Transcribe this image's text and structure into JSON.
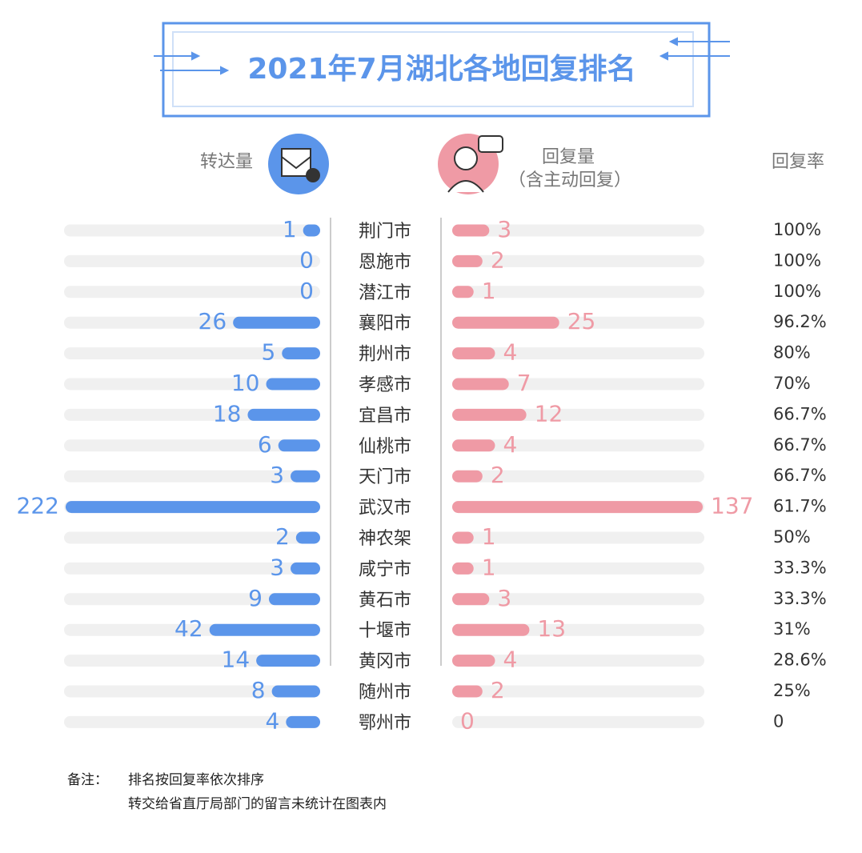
{
  "chart_data": {
    "type": "butterfly",
    "title": "2021年7月湖北各地回复排名",
    "categories": [
      "荆门市",
      "恩施市",
      "潜江市",
      "襄阳市",
      "荆州市",
      "孝感市",
      "宜昌市",
      "仙桃市",
      "天门市",
      "武汉市",
      "神农架",
      "咸宁市",
      "黄石市",
      "十堰市",
      "黄冈市",
      "随州市",
      "鄂州市"
    ],
    "series": [
      {
        "name": "转达量",
        "color": "#5b95ea",
        "label_color": "#5b95ea",
        "side": "left",
        "scale": "sqrt",
        "xlim": [
          0,
          222
        ],
        "values": [
          1,
          0,
          0,
          26,
          5,
          10,
          18,
          6,
          3,
          222,
          2,
          3,
          9,
          42,
          14,
          8,
          4
        ]
      },
      {
        "name": "回复量",
        "subname": "（含主动回复）",
        "color": "#ef9aa5",
        "label_color": "#ef9aa5",
        "side": "right",
        "scale": "sqrt",
        "xlim": [
          0,
          137
        ],
        "values": [
          3,
          2,
          1,
          25,
          4,
          7,
          12,
          4,
          2,
          137,
          1,
          1,
          3,
          13,
          4,
          2,
          0
        ]
      }
    ],
    "rate_column": {
      "name": "回复率",
      "labels": [
        "100%",
        "100%",
        "100%",
        "96.2%",
        "80%",
        "70%",
        "66.7%",
        "66.7%",
        "66.7%",
        "61.7%",
        "50%",
        "33.3%",
        "33.3%",
        "31%",
        "28.6%",
        "25%",
        "0"
      ]
    },
    "notes": {
      "label": "备注：",
      "lines": [
        "排名按回复率依次排序",
        "转交给省直厅局部门的留言未统计在图表内"
      ]
    }
  }
}
